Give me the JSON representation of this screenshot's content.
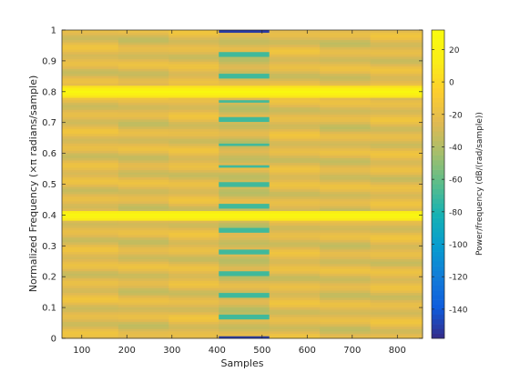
{
  "chart_data": {
    "type": "heatmap",
    "title": "",
    "xlabel": "Samples",
    "ylabel": "Normalized Frequency (×π radians/sample)",
    "xlim": [
      56,
      856
    ],
    "ylim": [
      0,
      1
    ],
    "x_ticks": [
      "100",
      "200",
      "300",
      "400",
      "500",
      "600",
      "700",
      "800"
    ],
    "x_tick_values": [
      100,
      200,
      300,
      400,
      500,
      600,
      700,
      800
    ],
    "y_ticks": [
      "0",
      "0.1",
      "0.2",
      "0.3",
      "0.4",
      "0.5",
      "0.6",
      "0.7",
      "0.8",
      "0.9",
      "1"
    ],
    "y_tick_values": [
      0,
      0.1,
      0.2,
      0.3,
      0.4,
      0.5,
      0.6,
      0.7,
      0.8,
      0.9,
      1
    ],
    "colorbar": {
      "label": "Power/frequency (dB/(rad/sample))",
      "range": [
        -158,
        32
      ],
      "ticks": [
        "20",
        "0",
        "-20",
        "-40",
        "-60",
        "-80",
        "-100",
        "-120",
        "-140"
      ],
      "tick_values": [
        20,
        0,
        -20,
        -40,
        -60,
        -80,
        -100,
        -120,
        -140
      ],
      "colormap": "parula"
    },
    "time_segments": [
      {
        "x_start": 56,
        "x_end": 181
      },
      {
        "x_start": 181,
        "x_end": 293
      },
      {
        "x_start": 293,
        "x_end": 404
      },
      {
        "x_start": 404,
        "x_end": 516
      },
      {
        "x_start": 516,
        "x_end": 628
      },
      {
        "x_start": 628,
        "x_end": 740
      },
      {
        "x_start": 740,
        "x_end": 856
      }
    ],
    "features": {
      "tone_frequencies": [
        0.4,
        0.8
      ],
      "tone_level_db": 28,
      "background_level_db": -24,
      "center_segment_notch_frequencies": [
        0.07,
        0.14,
        0.21,
        0.28,
        0.35,
        0.43,
        0.5,
        0.56,
        0.63,
        0.71,
        0.77,
        0.85,
        0.92
      ],
      "edge_level_db": -152
    },
    "grid": false,
    "legend": "none"
  }
}
